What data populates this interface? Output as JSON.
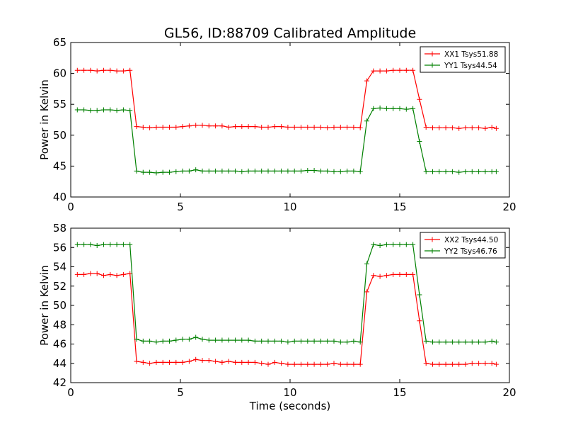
{
  "figure": {
    "title": "GL56, ID:88709 Calibrated Amplitude"
  },
  "chart_data": [
    {
      "type": "line",
      "title": "GL56, ID:88709 Calibrated Amplitude",
      "xlabel": "",
      "ylabel": "Power in Kelvin",
      "xlim": [
        0,
        20
      ],
      "ylim": [
        40,
        65
      ],
      "xticks": [
        0,
        5,
        10,
        15,
        20
      ],
      "yticks": [
        40,
        45,
        50,
        55,
        60,
        65
      ],
      "grid": false,
      "legend_position": "top-right",
      "x": [
        0.3,
        0.6,
        0.9,
        1.2,
        1.5,
        1.8,
        2.1,
        2.4,
        2.7,
        3.0,
        3.3,
        3.6,
        3.9,
        4.2,
        4.5,
        4.8,
        5.1,
        5.4,
        5.7,
        6.0,
        6.3,
        6.6,
        6.9,
        7.2,
        7.5,
        7.8,
        8.1,
        8.4,
        8.7,
        9.0,
        9.3,
        9.6,
        9.9,
        10.2,
        10.5,
        10.8,
        11.1,
        11.4,
        11.7,
        12.0,
        12.3,
        12.6,
        12.9,
        13.2,
        13.5,
        13.8,
        14.1,
        14.4,
        14.7,
        15.0,
        15.3,
        15.6,
        15.9,
        16.2,
        16.5,
        16.8,
        17.1,
        17.4,
        17.7,
        18.0,
        18.3,
        18.6,
        18.9,
        19.2,
        19.4
      ],
      "series": [
        {
          "name": "XX1 Tsys51.88",
          "color": "#ff0000",
          "values": [
            60.5,
            60.5,
            60.5,
            60.4,
            60.5,
            60.5,
            60.4,
            60.4,
            60.5,
            51.4,
            51.3,
            51.2,
            51.3,
            51.3,
            51.3,
            51.3,
            51.4,
            51.5,
            51.6,
            51.6,
            51.5,
            51.5,
            51.5,
            51.3,
            51.4,
            51.4,
            51.4,
            51.4,
            51.3,
            51.3,
            51.4,
            51.4,
            51.3,
            51.3,
            51.3,
            51.3,
            51.3,
            51.3,
            51.2,
            51.3,
            51.3,
            51.3,
            51.3,
            51.2,
            58.8,
            60.4,
            60.4,
            60.4,
            60.5,
            60.5,
            60.5,
            60.5,
            55.8,
            51.3,
            51.2,
            51.2,
            51.2,
            51.2,
            51.1,
            51.2,
            51.2,
            51.2,
            51.1,
            51.3,
            51.1
          ]
        },
        {
          "name": "YY1 Tsys44.54",
          "color": "#008000",
          "values": [
            54.1,
            54.1,
            54.0,
            54.0,
            54.1,
            54.1,
            54.0,
            54.1,
            54.0,
            44.2,
            44.0,
            44.0,
            43.9,
            44.0,
            44.0,
            44.1,
            44.2,
            44.2,
            44.4,
            44.2,
            44.2,
            44.2,
            44.2,
            44.2,
            44.2,
            44.1,
            44.2,
            44.2,
            44.2,
            44.2,
            44.2,
            44.2,
            44.2,
            44.2,
            44.2,
            44.3,
            44.3,
            44.2,
            44.2,
            44.1,
            44.1,
            44.2,
            44.2,
            44.1,
            52.3,
            54.3,
            54.4,
            54.3,
            54.3,
            54.3,
            54.2,
            54.3,
            49.0,
            44.1,
            44.1,
            44.1,
            44.1,
            44.1,
            44.0,
            44.1,
            44.1,
            44.1,
            44.1,
            44.1,
            44.1
          ]
        }
      ]
    },
    {
      "type": "line",
      "title": "",
      "xlabel": "Time (seconds)",
      "ylabel": "Power in Kelvin",
      "xlim": [
        0,
        20
      ],
      "ylim": [
        42,
        58
      ],
      "xticks": [
        0,
        5,
        10,
        15,
        20
      ],
      "yticks": [
        42,
        44,
        46,
        48,
        50,
        52,
        54,
        56,
        58
      ],
      "grid": false,
      "legend_position": "top-right",
      "x": [
        0.3,
        0.6,
        0.9,
        1.2,
        1.5,
        1.8,
        2.1,
        2.4,
        2.7,
        3.0,
        3.3,
        3.6,
        3.9,
        4.2,
        4.5,
        4.8,
        5.1,
        5.4,
        5.7,
        6.0,
        6.3,
        6.6,
        6.9,
        7.2,
        7.5,
        7.8,
        8.1,
        8.4,
        8.7,
        9.0,
        9.3,
        9.6,
        9.9,
        10.2,
        10.5,
        10.8,
        11.1,
        11.4,
        11.7,
        12.0,
        12.3,
        12.6,
        12.9,
        13.2,
        13.5,
        13.8,
        14.1,
        14.4,
        14.7,
        15.0,
        15.3,
        15.6,
        15.9,
        16.2,
        16.5,
        16.8,
        17.1,
        17.4,
        17.7,
        18.0,
        18.3,
        18.6,
        18.9,
        19.2,
        19.4
      ],
      "series": [
        {
          "name": "XX2 Tsys44.50",
          "color": "#ff0000",
          "values": [
            53.2,
            53.2,
            53.3,
            53.3,
            53.1,
            53.2,
            53.1,
            53.2,
            53.3,
            44.2,
            44.1,
            44.0,
            44.1,
            44.1,
            44.1,
            44.1,
            44.1,
            44.2,
            44.4,
            44.3,
            44.3,
            44.2,
            44.1,
            44.2,
            44.1,
            44.1,
            44.1,
            44.1,
            44.0,
            43.9,
            44.1,
            44.0,
            43.9,
            43.9,
            43.9,
            43.9,
            43.9,
            43.9,
            43.9,
            44.0,
            43.9,
            43.9,
            43.9,
            43.9,
            51.4,
            53.1,
            53.0,
            53.1,
            53.2,
            53.2,
            53.2,
            53.2,
            48.4,
            44.0,
            43.9,
            43.9,
            43.9,
            43.9,
            43.9,
            43.9,
            44.0,
            44.0,
            44.0,
            44.0,
            43.9
          ]
        },
        {
          "name": "YY2 Tsys46.76",
          "color": "#008000",
          "values": [
            56.3,
            56.3,
            56.3,
            56.2,
            56.3,
            56.3,
            56.3,
            56.3,
            56.3,
            46.5,
            46.3,
            46.3,
            46.2,
            46.3,
            46.3,
            46.4,
            46.5,
            46.5,
            46.7,
            46.5,
            46.4,
            46.4,
            46.4,
            46.4,
            46.4,
            46.4,
            46.4,
            46.3,
            46.3,
            46.3,
            46.3,
            46.3,
            46.2,
            46.3,
            46.3,
            46.3,
            46.3,
            46.3,
            46.3,
            46.3,
            46.2,
            46.2,
            46.3,
            46.2,
            54.3,
            56.3,
            56.2,
            56.3,
            56.3,
            56.3,
            56.3,
            56.3,
            51.1,
            46.3,
            46.2,
            46.2,
            46.2,
            46.2,
            46.2,
            46.2,
            46.2,
            46.2,
            46.2,
            46.3,
            46.2
          ]
        }
      ]
    }
  ]
}
